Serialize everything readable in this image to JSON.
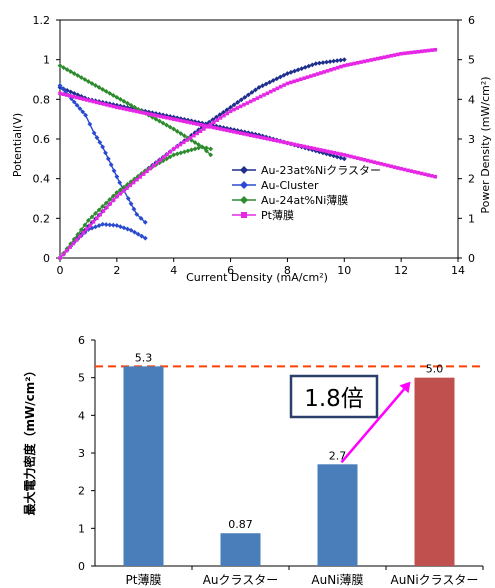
{
  "chart_data": [
    {
      "type": "line",
      "title": "",
      "xlabel": "Current Density (mA/cm²)",
      "ylabel": "Potential(V)",
      "y2label": "Power Density (mW/cm²)",
      "xlim": [
        0,
        14
      ],
      "ylim": [
        0,
        1.2
      ],
      "y2lim": [
        0,
        6
      ],
      "xticks": [
        "0",
        "2",
        "4",
        "6",
        "8",
        "10",
        "12",
        "14"
      ],
      "yticks": [
        "0",
        "0.2",
        "0.4",
        "0.6",
        "0.8",
        "1",
        "1.2"
      ],
      "y2ticks": [
        "0",
        "1",
        "2",
        "3",
        "4",
        "5",
        "6"
      ],
      "legend_position": "bottom-right",
      "grid": false,
      "series": [
        {
          "name": "Au-23at%Niクラスター",
          "color": "#1e2f8c",
          "marker": "diamond",
          "potential": [
            [
              0,
              0.86
            ],
            [
              0.5,
              0.83
            ],
            [
              1,
              0.8
            ],
            [
              2,
              0.77
            ],
            [
              3,
              0.74
            ],
            [
              4,
              0.71
            ],
            [
              5,
              0.68
            ],
            [
              6,
              0.65
            ],
            [
              7,
              0.62
            ],
            [
              8,
              0.58
            ],
            [
              9,
              0.54
            ],
            [
              10,
              0.5
            ]
          ],
          "power": [
            [
              0,
              0
            ],
            [
              1,
              0.8
            ],
            [
              2,
              1.55
            ],
            [
              3,
              2.2
            ],
            [
              4,
              2.75
            ],
            [
              5,
              3.3
            ],
            [
              6,
              3.8
            ],
            [
              7,
              4.3
            ],
            [
              8,
              4.65
            ],
            [
              9,
              4.9
            ],
            [
              10,
              5.0
            ]
          ]
        },
        {
          "name": "Au-Cluster",
          "color": "#2a4bd1",
          "marker": "diamond",
          "potential": [
            [
              0,
              0.87
            ],
            [
              0.3,
              0.82
            ],
            [
              0.6,
              0.77
            ],
            [
              0.9,
              0.72
            ],
            [
              1.2,
              0.63
            ],
            [
              1.5,
              0.56
            ],
            [
              1.8,
              0.47
            ],
            [
              2.1,
              0.38
            ],
            [
              2.4,
              0.3
            ],
            [
              2.7,
              0.22
            ],
            [
              3.0,
              0.18
            ]
          ],
          "power": [
            [
              0,
              0
            ],
            [
              0.5,
              0.4
            ],
            [
              1,
              0.72
            ],
            [
              1.5,
              0.85
            ],
            [
              2,
              0.82
            ],
            [
              2.5,
              0.7
            ],
            [
              3,
              0.5
            ]
          ]
        },
        {
          "name": "Au-24at%Ni薄膜",
          "color": "#2e8b2e",
          "marker": "diamond",
          "potential": [
            [
              0,
              0.97
            ],
            [
              1,
              0.89
            ],
            [
              2,
              0.81
            ],
            [
              3,
              0.73
            ],
            [
              4,
              0.65
            ],
            [
              5,
              0.56
            ],
            [
              5.3,
              0.52
            ]
          ],
          "power": [
            [
              0,
              0
            ],
            [
              1,
              0.95
            ],
            [
              2,
              1.65
            ],
            [
              3,
              2.2
            ],
            [
              4,
              2.6
            ],
            [
              5,
              2.8
            ],
            [
              5.3,
              2.75
            ]
          ]
        },
        {
          "name": "Pt薄膜",
          "color": "#e628e6",
          "marker": "square",
          "potential": [
            [
              0,
              0.83
            ],
            [
              2,
              0.76
            ],
            [
              4,
              0.7
            ],
            [
              6,
              0.64
            ],
            [
              8,
              0.58
            ],
            [
              10,
              0.52
            ],
            [
              12,
              0.45
            ],
            [
              13.2,
              0.41
            ]
          ],
          "power": [
            [
              0,
              0
            ],
            [
              2,
              1.55
            ],
            [
              4,
              2.75
            ],
            [
              6,
              3.7
            ],
            [
              8,
              4.4
            ],
            [
              10,
              4.85
            ],
            [
              12,
              5.15
            ],
            [
              13.2,
              5.25
            ]
          ]
        }
      ]
    },
    {
      "type": "bar",
      "title": "",
      "xlabel": "",
      "ylabel": "最大電力密度（mW/cm²）",
      "ylim": [
        0,
        6
      ],
      "yticks": [
        "0",
        "1",
        "2",
        "3",
        "4",
        "5",
        "6"
      ],
      "categories": [
        "Pt薄膜",
        "Auクラスター",
        "AuNi薄膜",
        "AuNiクラスター"
      ],
      "values": [
        5.3,
        0.87,
        2.7,
        5.0
      ],
      "value_labels": [
        "5.3",
        "0.87",
        "2.7",
        "5.0"
      ],
      "colors": [
        "#4a7ebb",
        "#4a7ebb",
        "#4a7ebb",
        "#c0504d"
      ],
      "reference_line": {
        "value": 5.3,
        "color": "#ff4000",
        "style": "dashed"
      },
      "annotation": {
        "text": "1.8倍",
        "arrow_color": "#ff00ff"
      }
    }
  ]
}
